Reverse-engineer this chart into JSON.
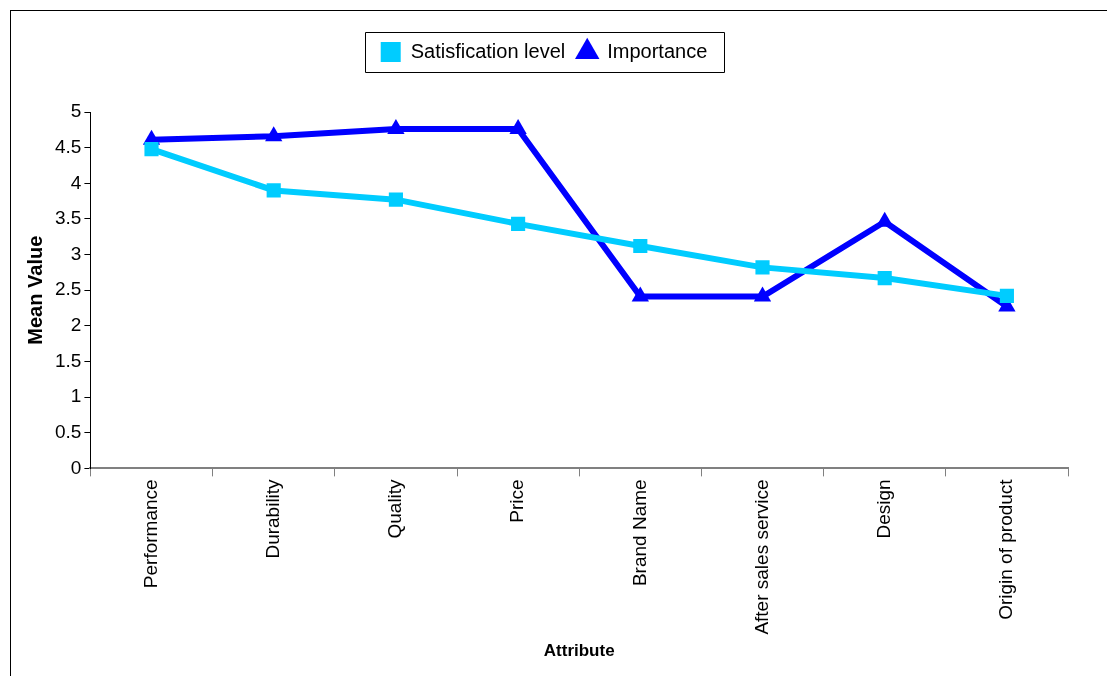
{
  "chart_data": {
    "type": "line",
    "xlabel": "Attribute",
    "ylabel": "Mean Value",
    "categories": [
      "Performance",
      "Durability",
      "Quality",
      "Price",
      "Brand Name",
      "After sales service",
      "Design",
      "Origin of product"
    ],
    "series": [
      {
        "name": "Satisfication level",
        "color": "#00ccff",
        "marker": "square",
        "values": [
          4.48,
          3.9,
          3.77,
          3.43,
          3.12,
          2.82,
          2.67,
          2.42
        ]
      },
      {
        "name": "Importance",
        "color": "#0000ff",
        "marker": "triangle",
        "values": [
          4.61,
          4.66,
          4.76,
          4.76,
          2.41,
          2.41,
          3.46,
          2.27
        ]
      }
    ],
    "ylim": [
      0,
      5
    ],
    "yticks": [
      0,
      0.5,
      1,
      1.5,
      2,
      2.5,
      3,
      3.5,
      4,
      4.5,
      5
    ],
    "grid": false,
    "legend": "top",
    "line_style": "solid"
  }
}
